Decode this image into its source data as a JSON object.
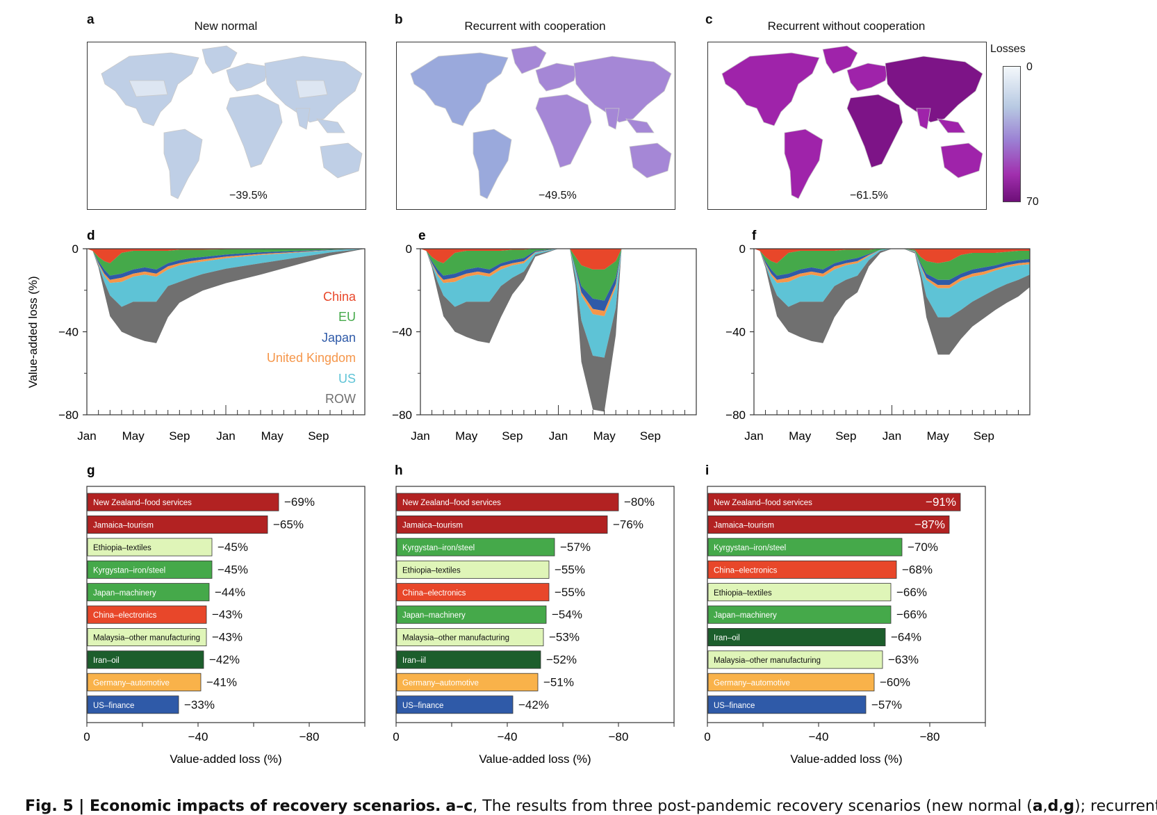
{
  "maps": [
    {
      "letter": "a",
      "title": "New normal",
      "total": "−39.5%",
      "fill": "#bfcfe6",
      "accent": "#dde6f2"
    },
    {
      "letter": "b",
      "title": "Recurrent with cooperation",
      "total": "−49.5%",
      "fill": "#a587d6",
      "accent": "#9aa9dc"
    },
    {
      "letter": "c",
      "title": "Recurrent without cooperation",
      "total": "−61.5%",
      "fill": "#9f23aa",
      "accent": "#7d1487"
    }
  ],
  "legend": {
    "title": "Losses",
    "min": "0",
    "max": "70"
  },
  "chart_data": [
    {
      "type": "area",
      "panel": "d",
      "ylabel": "Value-added loss (%)",
      "ylim": [
        -80,
        0
      ],
      "yticks": [
        "0",
        "−40",
        "−80"
      ],
      "xticks": [
        "Jan",
        "May",
        "Sep",
        "Jan",
        "May",
        "Sep"
      ],
      "legend": [
        "China",
        "EU",
        "Japan",
        "United Kingdom",
        "US",
        "ROW"
      ],
      "series_colors": [
        "#e8472a",
        "#45a94a",
        "#2f5aa8",
        "#f5964a",
        "#5ec3d6",
        "#707070"
      ],
      "months": [
        0,
        0.5,
        1,
        1.5,
        2,
        3,
        4,
        5,
        6,
        7,
        8,
        9,
        10,
        12,
        15,
        18,
        21,
        24
      ],
      "series": [
        {
          "name": "China",
          "values": [
            0,
            1,
            4,
            6,
            7,
            2,
            1,
            1,
            1,
            1,
            0.5,
            0.5,
            0.5,
            0.3,
            0.2,
            0.1,
            0,
            0
          ]
        },
        {
          "name": "EU",
          "values": [
            0,
            0,
            2,
            4,
            6,
            10,
            9,
            8,
            9,
            6,
            5,
            4,
            3.5,
            2.5,
            1.5,
            1,
            0.5,
            0
          ]
        },
        {
          "name": "Japan",
          "values": [
            0,
            0,
            1,
            2,
            2,
            2,
            2,
            2,
            2,
            1.5,
            1.5,
            1.5,
            1.2,
            1,
            0.8,
            0.5,
            0.2,
            0
          ]
        },
        {
          "name": "United Kingdom",
          "values": [
            0,
            0,
            0.5,
            1,
            1.5,
            2,
            1.5,
            1.5,
            1.5,
            1.5,
            1,
            1,
            1,
            0.8,
            0.5,
            0.3,
            0.1,
            0
          ]
        },
        {
          "name": "US",
          "values": [
            0,
            0,
            0.5,
            3,
            6,
            12,
            12,
            13,
            12,
            8,
            8,
            7,
            6,
            5,
            4,
            2.5,
            1,
            0
          ]
        },
        {
          "name": "ROW",
          "values": [
            0,
            0,
            1,
            5,
            10,
            12,
            17,
            19,
            20,
            15,
            10,
            9,
            8,
            7,
            5.5,
            3.5,
            1.5,
            0
          ]
        }
      ]
    },
    {
      "type": "area",
      "panel": "e",
      "ylim": [
        -80,
        0
      ],
      "yticks": [
        "0",
        "−40",
        "−80"
      ],
      "xticks": [
        "Jan",
        "May",
        "Sep",
        "Jan",
        "May",
        "Sep"
      ],
      "months": [
        0,
        0.5,
        1,
        1.5,
        2,
        3,
        4,
        5,
        6,
        7,
        8,
        9,
        10,
        12,
        13,
        13.5,
        14,
        15,
        16,
        17,
        17.5,
        24
      ],
      "series": [
        {
          "name": "China",
          "values": [
            0,
            1,
            4,
            6,
            7,
            2,
            1,
            1,
            1,
            1,
            0.5,
            0.5,
            0,
            0,
            0,
            4,
            8,
            10,
            10,
            6,
            0,
            0
          ]
        },
        {
          "name": "EU",
          "values": [
            0,
            0,
            2,
            4,
            6,
            10,
            9,
            8,
            9,
            6,
            5,
            4,
            1,
            0,
            0,
            5,
            10,
            14,
            15,
            8,
            0,
            0
          ]
        },
        {
          "name": "Japan",
          "values": [
            0,
            0,
            1,
            2,
            2,
            2,
            2,
            2,
            2,
            1.5,
            1.5,
            1.5,
            0.5,
            0,
            0,
            1,
            3,
            5,
            5,
            3,
            0,
            0
          ]
        },
        {
          "name": "United Kingdom",
          "values": [
            0,
            0,
            0.5,
            1,
            1.5,
            2,
            1.5,
            1.5,
            1.5,
            1.5,
            1,
            1,
            0.3,
            0,
            0,
            0.5,
            1.5,
            2.5,
            2.5,
            1.5,
            0,
            0
          ]
        },
        {
          "name": "US",
          "values": [
            0,
            0,
            0.5,
            3,
            6,
            12,
            12,
            13,
            12,
            8,
            6,
            4,
            1,
            0,
            0,
            3,
            12,
            20,
            20,
            10,
            0,
            0
          ]
        },
        {
          "name": "ROW",
          "values": [
            0,
            0,
            1,
            5,
            10,
            12,
            17,
            19,
            20,
            15,
            8,
            4,
            1,
            0,
            0,
            4,
            20,
            26,
            26,
            13,
            0,
            0
          ]
        }
      ]
    },
    {
      "type": "area",
      "panel": "f",
      "ylim": [
        -80,
        0
      ],
      "yticks": [
        "0",
        "−40",
        "−80"
      ],
      "xticks": [
        "Jan",
        "May",
        "Sep",
        "Jan",
        "May",
        "Sep"
      ],
      "months": [
        0,
        0.5,
        1,
        1.5,
        2,
        3,
        4,
        5,
        6,
        7,
        8,
        9,
        10,
        11,
        12,
        13,
        14,
        14.5,
        15,
        16,
        17,
        18,
        19,
        20,
        21,
        22,
        23,
        24
      ],
      "series": [
        {
          "name": "China",
          "values": [
            0,
            1,
            4,
            6,
            7,
            2,
            1,
            1,
            1,
            1,
            0.5,
            0.5,
            0.5,
            0,
            0,
            0,
            0.5,
            4,
            6,
            7,
            6,
            3,
            2,
            2,
            2,
            1.5,
            1,
            1
          ]
        },
        {
          "name": "EU",
          "values": [
            0,
            0,
            2,
            4,
            6,
            10,
            9,
            8,
            9,
            6,
            5,
            4,
            2,
            0.5,
            0,
            0,
            0.5,
            3,
            6,
            8,
            9,
            9,
            8,
            7,
            6,
            5,
            4.5,
            4
          ]
        },
        {
          "name": "Japan",
          "values": [
            0,
            0,
            1,
            2,
            2,
            2,
            2,
            2,
            2,
            1.5,
            1.5,
            1.5,
            0.5,
            0,
            0,
            0,
            0.2,
            1,
            2,
            2.5,
            2.5,
            2,
            2,
            2,
            1.5,
            1.5,
            1.5,
            1.5
          ]
        },
        {
          "name": "United Kingdom",
          "values": [
            0,
            0,
            0.5,
            1,
            1.5,
            2,
            1.5,
            1.5,
            1.5,
            1.5,
            1,
            1,
            0.5,
            0,
            0,
            0,
            0.2,
            0.5,
            1,
            1.5,
            1.5,
            1.5,
            1.5,
            1.5,
            1,
            1,
            1,
            1
          ]
        },
        {
          "name": "US",
          "values": [
            0,
            0,
            0.5,
            3,
            6,
            12,
            12,
            13,
            12,
            8,
            7,
            6,
            2,
            0.5,
            0,
            0,
            0.3,
            3,
            8,
            14,
            14,
            14,
            12,
            10,
            9,
            8,
            7,
            5
          ]
        },
        {
          "name": "ROW",
          "values": [
            0,
            0,
            1,
            5,
            10,
            12,
            17,
            19,
            20,
            15,
            10,
            8,
            3,
            1,
            0,
            0,
            0.5,
            3,
            10,
            18,
            18,
            14,
            12,
            11,
            10,
            9,
            8,
            6
          ]
        }
      ]
    },
    {
      "type": "bar",
      "panel": "g",
      "xlabel": "Value-added loss (%)",
      "xlim": [
        0,
        -100
      ],
      "xticks": [
        "0",
        "−40",
        "−80"
      ],
      "categories": [
        "New Zealand–food services",
        "Jamaica–tourism",
        "Ethiopia–textiles",
        "Kyrgystan–iron/steel",
        "Japan–machinery",
        "China–electronics",
        "Malaysia–other manufacturing",
        "Iran–oil",
        "Germany–automotive",
        "US–finance"
      ],
      "values": [
        -69,
        -65,
        -45,
        -45,
        -44,
        -43,
        -43,
        -42,
        -41,
        -33
      ],
      "labels": [
        "−69%",
        "−65%",
        "−45%",
        "−45%",
        "−44%",
        "−43%",
        "−43%",
        "−42%",
        "−41%",
        "−33%"
      ],
      "colors": [
        "#b22222",
        "#b22222",
        "#dff5b8",
        "#45a94a",
        "#45a94a",
        "#e8472a",
        "#dff5b8",
        "#1c5e2c",
        "#f9b24a",
        "#2f5aa8"
      ],
      "dark_text": [
        false,
        false,
        true,
        false,
        false,
        false,
        true,
        false,
        false,
        false
      ]
    },
    {
      "type": "bar",
      "panel": "h",
      "xlabel": "Value-added loss (%)",
      "xlim": [
        0,
        -100
      ],
      "xticks": [
        "0",
        "−40",
        "−80"
      ],
      "categories": [
        "New Zealand–food services",
        "Jamaica–tourism",
        "Kyrgystan–iron/steel",
        "Ethiopia–textiles",
        "China–electronics",
        "Japan–machinery",
        "Malaysia–other manufacturing",
        "Iran–iil",
        "Germany–automotive",
        "US–finance"
      ],
      "values": [
        -80,
        -76,
        -57,
        -55,
        -55,
        -54,
        -53,
        -52,
        -51,
        -42
      ],
      "labels": [
        "−80%",
        "−76%",
        "−57%",
        "−55%",
        "−55%",
        "−54%",
        "−53%",
        "−52%",
        "−51%",
        "−42%"
      ],
      "colors": [
        "#b22222",
        "#b22222",
        "#45a94a",
        "#dff5b8",
        "#e8472a",
        "#45a94a",
        "#dff5b8",
        "#1c5e2c",
        "#f9b24a",
        "#2f5aa8"
      ],
      "dark_text": [
        false,
        false,
        false,
        true,
        false,
        false,
        true,
        false,
        false,
        false
      ]
    },
    {
      "type": "bar",
      "panel": "i",
      "xlabel": "Value-added loss (%)",
      "xlim": [
        0,
        -100
      ],
      "xticks": [
        "0",
        "−40",
        "−80"
      ],
      "categories": [
        "New Zealand–food services",
        "Jamaica–tourism",
        "Kyrgystan–iron/steel",
        "China–electronics",
        "Ethiopia–textiles",
        "Japan–machinery",
        "Iran–oil",
        "Malaysia–other manufacturing",
        "Germany–automotive",
        "US–finance"
      ],
      "values": [
        -91,
        -87,
        -70,
        -68,
        -66,
        -66,
        -64,
        -63,
        -60,
        -57
      ],
      "labels": [
        "−91%",
        "−87%",
        "−70%",
        "−68%",
        "−66%",
        "−66%",
        "−64%",
        "−63%",
        "−60%",
        "−57%"
      ],
      "colors": [
        "#b22222",
        "#b22222",
        "#45a94a",
        "#e8472a",
        "#dff5b8",
        "#45a94a",
        "#1c5e2c",
        "#dff5b8",
        "#f9b24a",
        "#2f5aa8"
      ],
      "dark_text": [
        false,
        false,
        false,
        false,
        true,
        false,
        false,
        true,
        false,
        false
      ]
    }
  ],
  "caption": {
    "label": "Fig. 5 | Economic impacts of recovery scenarios.",
    "range": "a–c",
    "text": ", The results from three post-pandemic recovery scenarios (new normal (",
    "refs1": "a",
    "sep1": ",",
    "refs2": "d",
    "sep2": ",",
    "refs3": "g",
    "text2": "); recurrent with"
  }
}
